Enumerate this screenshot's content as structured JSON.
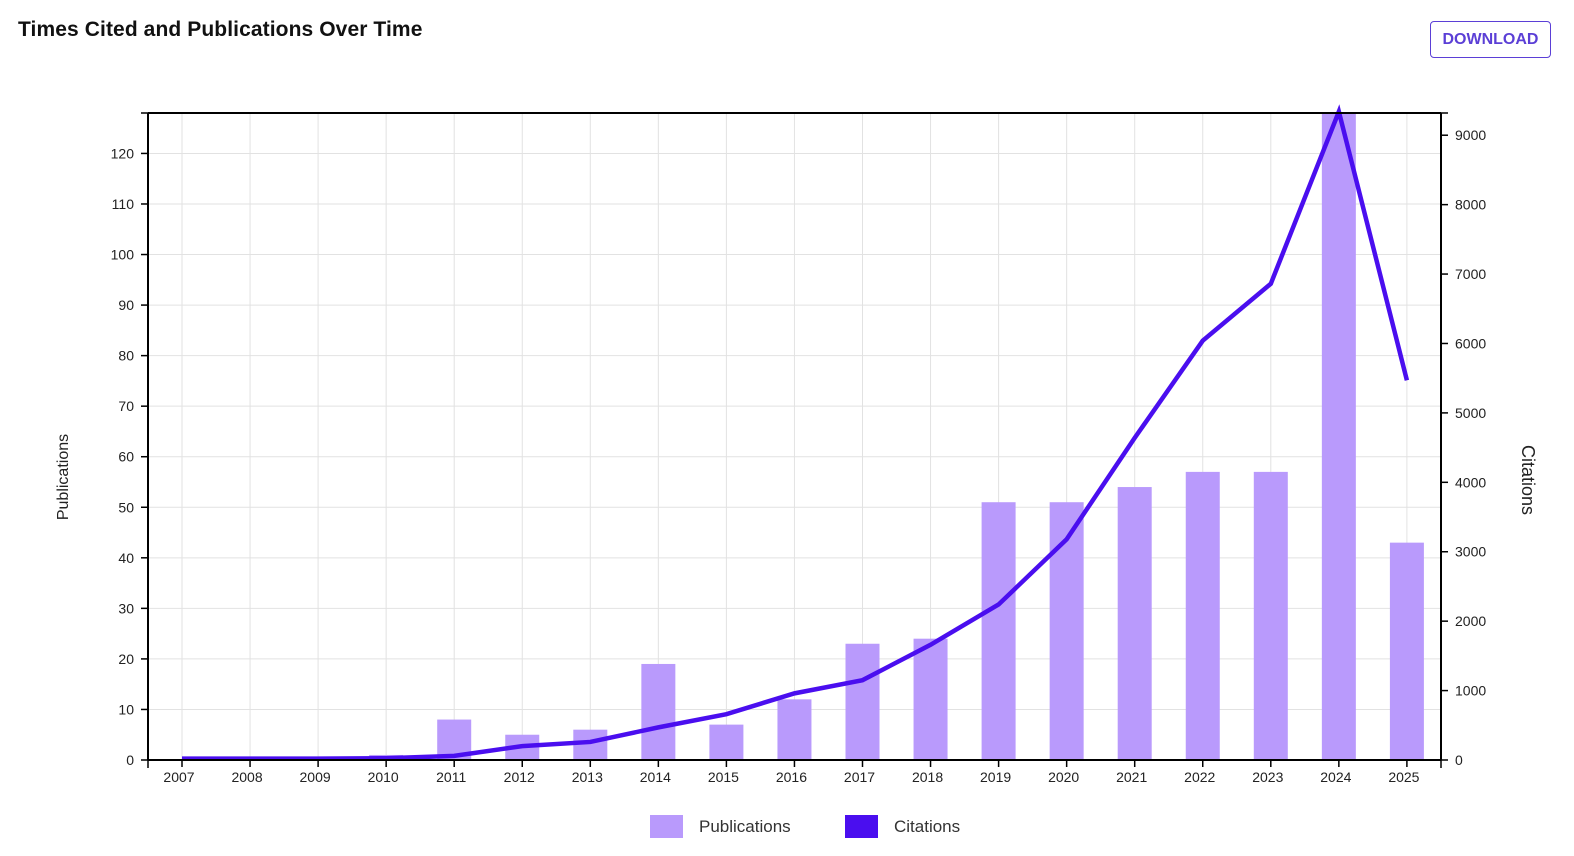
{
  "header": {
    "title": "Times Cited and Publications Over Time",
    "download_label": "DOWNLOAD"
  },
  "colors": {
    "bars": "#b99afc",
    "line": "#4a0eef",
    "accent": "#5b3fd6"
  },
  "chart_data": {
    "type": "bar+line",
    "title": "Times Cited and Publications Over Time",
    "categories": [
      "2007",
      "2008",
      "2009",
      "2010",
      "2011",
      "2012",
      "2013",
      "2014",
      "2015",
      "2016",
      "2017",
      "2018",
      "2019",
      "2020",
      "2021",
      "2022",
      "2023",
      "2024",
      "2025"
    ],
    "series": [
      {
        "name": "Publications",
        "type": "bar",
        "axis": "left",
        "values": [
          0,
          0,
          0,
          1,
          8,
          5,
          6,
          19,
          7,
          12,
          23,
          24,
          51,
          51,
          54,
          57,
          57,
          128,
          43
        ]
      },
      {
        "name": "Citations",
        "type": "line",
        "axis": "right",
        "values": [
          20,
          20,
          20,
          25,
          60,
          200,
          260,
          470,
          660,
          960,
          1150,
          1660,
          2240,
          3180,
          4640,
          6040,
          6860,
          9340,
          5470
        ]
      }
    ],
    "ylabel_left": "Publications",
    "ylabel_right": "Citations",
    "ylim_left": [
      0,
      128
    ],
    "ylim_right": [
      0,
      9320
    ],
    "yticks_left": [
      0,
      10,
      20,
      30,
      40,
      50,
      60,
      70,
      80,
      90,
      100,
      110,
      120
    ],
    "yticks_right": [
      0,
      1000,
      2000,
      3000,
      4000,
      5000,
      6000,
      7000,
      8000,
      9000
    ],
    "grid": true,
    "legend": "bottom-center"
  }
}
